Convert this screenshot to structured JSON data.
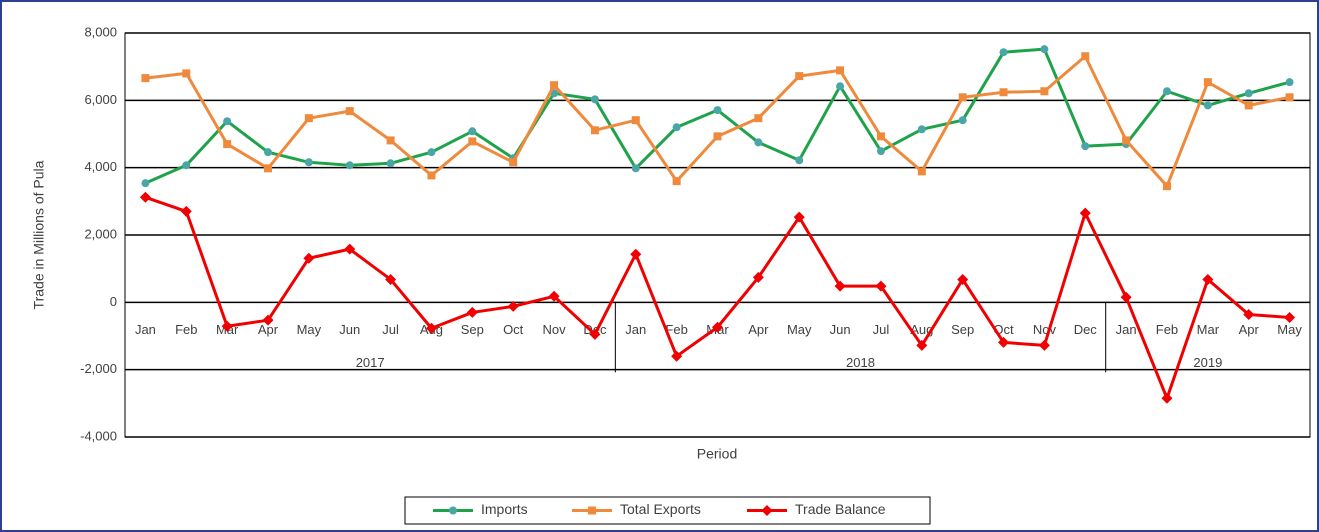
{
  "chart_data": {
    "type": "line",
    "y_label": "Trade in Millions of Pula",
    "x_label": "Period",
    "categories": [
      "Jan",
      "Feb",
      "Mar",
      "Apr",
      "May",
      "Jun",
      "Jul",
      "Aug",
      "Sep",
      "Oct",
      "Nov",
      "Dec",
      "Jan",
      "Feb",
      "Mar",
      "Apr",
      "May",
      "Jun",
      "Jul",
      "Aug",
      "Sep",
      "Oct",
      "Nov",
      "Dec",
      "Jan",
      "Feb",
      "Mar",
      "Apr",
      "May"
    ],
    "category_groups": [
      {
        "name": "2017",
        "count": 12
      },
      {
        "name": "2018",
        "count": 12
      },
      {
        "name": "2019",
        "count": 5
      }
    ],
    "series": [
      {
        "name": "Imports",
        "color": "#1fa34a",
        "marker": "circle",
        "marker_color": "#4aa6a6",
        "values": [
          3540,
          4070,
          5380,
          4460,
          4160,
          4070,
          4130,
          4460,
          5080,
          4280,
          6210,
          6030,
          3980,
          5200,
          5710,
          4750,
          4220,
          6420,
          4490,
          5140,
          5410,
          7430,
          7520,
          4640,
          4700,
          6270,
          5850,
          6210,
          6540
        ]
      },
      {
        "name": "Total Exports",
        "color": "#ef8a3c",
        "marker": "square",
        "marker_color": "#ef8a3c",
        "values": [
          6660,
          6800,
          4700,
          3980,
          5470,
          5680,
          4810,
          3770,
          4780,
          4160,
          6450,
          5110,
          5410,
          3600,
          4930,
          5470,
          6720,
          6890,
          4930,
          3890,
          6090,
          6240,
          6270,
          7310,
          4810,
          3450,
          6540,
          5850,
          6090
        ]
      },
      {
        "name": "Trade Balance",
        "color": "#f00000",
        "marker": "diamond",
        "marker_color": "#f00000",
        "values": [
          3120,
          2700,
          -710,
          -530,
          1310,
          1580,
          680,
          -770,
          -300,
          -120,
          180,
          -950,
          1430,
          -1600,
          -740,
          740,
          2530,
          480,
          480,
          -1280,
          680,
          -1190,
          -1280,
          2650,
          150,
          -2850,
          680,
          -360,
          -450
        ]
      }
    ],
    "ylim": [
      -4000,
      8000
    ],
    "yticks": [
      {
        "value": -4000,
        "label": "-4,000"
      },
      {
        "value": -2000,
        "label": "-2,000"
      },
      0,
      {
        "value": 2000,
        "label": "2,000"
      },
      {
        "value": 4000,
        "label": "4,000"
      },
      {
        "value": 6000,
        "label": "6,000"
      },
      {
        "value": 8000,
        "label": "8,000"
      }
    ],
    "grid": true,
    "legend": "bottom"
  }
}
